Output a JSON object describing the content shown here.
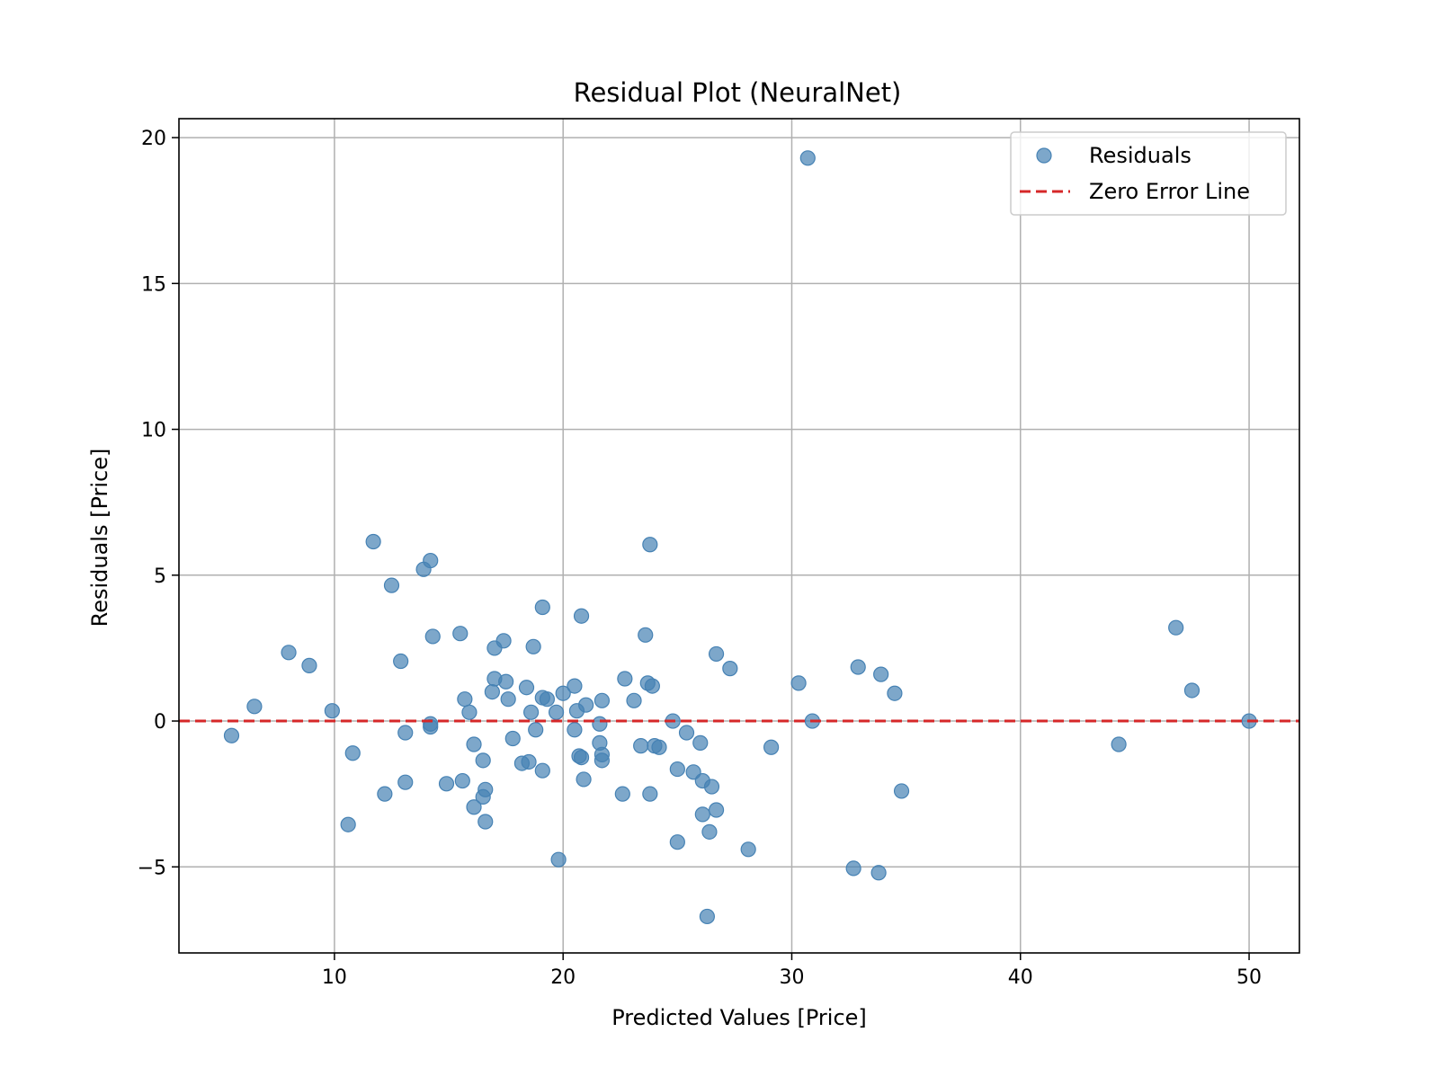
{
  "chart_data": {
    "type": "scatter",
    "title": "Residual Plot (NeuralNet)",
    "xlabel": "Predicted Values [Price]",
    "ylabel": "Residuals [Price]",
    "xlim": [
      3.2,
      52.2
    ],
    "ylim": [
      -7.95,
      20.65
    ],
    "x_ticks": [
      10,
      20,
      30,
      40,
      50
    ],
    "x_tick_labels": [
      "10",
      "20",
      "30",
      "40",
      "50"
    ],
    "y_ticks": [
      -5,
      0,
      5,
      10,
      15,
      20
    ],
    "y_tick_labels": [
      "−5",
      "0",
      "5",
      "10",
      "15",
      "20"
    ],
    "grid": true,
    "legend_position": "top-right",
    "colors": {
      "points": "#4682b4",
      "zero_line": "#d62728",
      "grid": "#b0b0b0"
    },
    "legend": [
      {
        "label": "Residuals",
        "kind": "marker"
      },
      {
        "label": "Zero Error Line",
        "kind": "dashed-line"
      }
    ],
    "reference_line": {
      "name": "Zero Error Line",
      "y": 0,
      "style": "dashed"
    },
    "series": [
      {
        "name": "Residuals",
        "points": [
          [
            30.7,
            19.3
          ],
          [
            23.8,
            6.05
          ],
          [
            11.7,
            6.15
          ],
          [
            14.2,
            5.5
          ],
          [
            13.9,
            5.2
          ],
          [
            12.5,
            4.65
          ],
          [
            19.1,
            3.9
          ],
          [
            20.8,
            3.6
          ],
          [
            46.8,
            3.2
          ],
          [
            15.5,
            3.0
          ],
          [
            23.6,
            2.95
          ],
          [
            14.3,
            2.9
          ],
          [
            17.4,
            2.75
          ],
          [
            18.7,
            2.55
          ],
          [
            17.0,
            2.5
          ],
          [
            8.0,
            2.35
          ],
          [
            26.7,
            2.3
          ],
          [
            12.9,
            2.05
          ],
          [
            8.9,
            1.9
          ],
          [
            32.9,
            1.85
          ],
          [
            27.3,
            1.8
          ],
          [
            33.9,
            1.6
          ],
          [
            17.0,
            1.45
          ],
          [
            22.7,
            1.45
          ],
          [
            17.5,
            1.35
          ],
          [
            30.3,
            1.3
          ],
          [
            23.7,
            1.3
          ],
          [
            23.9,
            1.2
          ],
          [
            18.4,
            1.15
          ],
          [
            20.5,
            1.2
          ],
          [
            47.5,
            1.05
          ],
          [
            16.9,
            1.0
          ],
          [
            34.5,
            0.95
          ],
          [
            20.0,
            0.95
          ],
          [
            19.1,
            0.8
          ],
          [
            19.3,
            0.75
          ],
          [
            15.7,
            0.75
          ],
          [
            17.6,
            0.75
          ],
          [
            21.7,
            0.7
          ],
          [
            23.1,
            0.7
          ],
          [
            21.0,
            0.55
          ],
          [
            6.5,
            0.5
          ],
          [
            9.9,
            0.35
          ],
          [
            20.6,
            0.35
          ],
          [
            19.7,
            0.3
          ],
          [
            18.6,
            0.3
          ],
          [
            15.9,
            0.3
          ],
          [
            24.8,
            0.0
          ],
          [
            30.9,
            0.0
          ],
          [
            50.0,
            0.0
          ],
          [
            14.2,
            -0.1
          ],
          [
            21.6,
            -0.1
          ],
          [
            14.2,
            -0.2
          ],
          [
            18.8,
            -0.3
          ],
          [
            20.5,
            -0.3
          ],
          [
            13.1,
            -0.4
          ],
          [
            25.4,
            -0.4
          ],
          [
            5.5,
            -0.5
          ],
          [
            17.8,
            -0.6
          ],
          [
            21.6,
            -0.75
          ],
          [
            26.0,
            -0.75
          ],
          [
            16.1,
            -0.8
          ],
          [
            44.3,
            -0.8
          ],
          [
            23.4,
            -0.85
          ],
          [
            24.0,
            -0.85
          ],
          [
            24.2,
            -0.9
          ],
          [
            29.1,
            -0.9
          ],
          [
            10.8,
            -1.1
          ],
          [
            21.7,
            -1.15
          ],
          [
            20.7,
            -1.2
          ],
          [
            20.8,
            -1.25
          ],
          [
            16.5,
            -1.35
          ],
          [
            21.7,
            -1.35
          ],
          [
            18.5,
            -1.4
          ],
          [
            18.2,
            -1.45
          ],
          [
            25.0,
            -1.65
          ],
          [
            19.1,
            -1.7
          ],
          [
            25.7,
            -1.75
          ],
          [
            20.9,
            -2.0
          ],
          [
            26.1,
            -2.05
          ],
          [
            15.6,
            -2.05
          ],
          [
            13.1,
            -2.1
          ],
          [
            14.9,
            -2.15
          ],
          [
            26.5,
            -2.25
          ],
          [
            16.6,
            -2.35
          ],
          [
            34.8,
            -2.4
          ],
          [
            12.2,
            -2.5
          ],
          [
            22.6,
            -2.5
          ],
          [
            23.8,
            -2.5
          ],
          [
            16.5,
            -2.6
          ],
          [
            16.1,
            -2.95
          ],
          [
            26.7,
            -3.05
          ],
          [
            26.1,
            -3.2
          ],
          [
            16.6,
            -3.45
          ],
          [
            10.6,
            -3.55
          ],
          [
            26.4,
            -3.8
          ],
          [
            25.0,
            -4.15
          ],
          [
            28.1,
            -4.4
          ],
          [
            19.8,
            -4.75
          ],
          [
            32.7,
            -5.05
          ],
          [
            33.8,
            -5.2
          ],
          [
            26.3,
            -6.7
          ]
        ]
      }
    ]
  }
}
